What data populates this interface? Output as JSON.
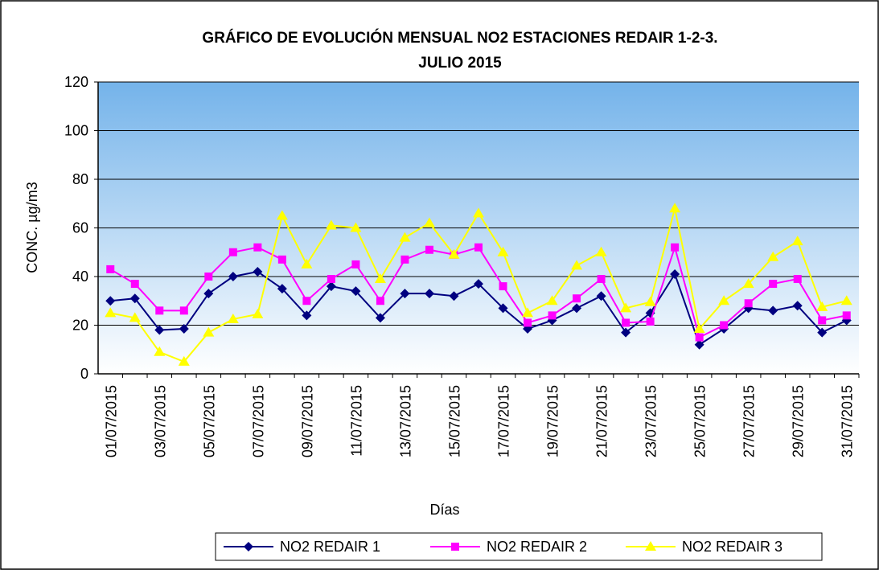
{
  "chart_data": {
    "type": "line",
    "title": [
      "GRÁFICO DE EVOLUCIÓN MENSUAL NO2 ESTACIONES REDAIR 1-2-3.",
      "JULIO 2015"
    ],
    "x_label": "Días",
    "y_label": "CONC.  µg/m3",
    "categories": [
      "01/07/2015",
      null,
      "03/07/2015",
      null,
      "05/07/2015",
      null,
      "07/07/2015",
      null,
      "09/07/2015",
      null,
      "11/07/2015",
      null,
      "13/07/2015",
      null,
      "15/07/2015",
      null,
      "17/07/2015",
      null,
      "19/07/2015",
      null,
      "21/07/2015",
      null,
      "23/07/2015",
      null,
      "25/07/2015",
      null,
      "27/07/2015",
      null,
      "29/07/2015",
      null,
      "31/07/2015"
    ],
    "series": [
      {
        "name": "NO2 REDAIR 1",
        "color": "#000080",
        "marker": "diamond",
        "values": [
          30,
          31,
          18,
          18.5,
          33,
          40,
          42,
          35,
          24,
          36,
          34,
          23,
          33,
          33,
          32,
          37,
          27,
          18.5,
          22,
          27,
          32,
          17,
          25,
          41,
          12,
          18.5,
          27,
          26,
          28,
          17,
          22
        ]
      },
      {
        "name": "NO2 REDAIR 2",
        "color": "#ff00ff",
        "marker": "square",
        "values": [
          43,
          37,
          26,
          26,
          40,
          50,
          52,
          47,
          30,
          39,
          45,
          30,
          47,
          51,
          49,
          52,
          36,
          21,
          24,
          31,
          39,
          21,
          21.5,
          52,
          15,
          20,
          29,
          37,
          39,
          22,
          24
        ]
      },
      {
        "name": "NO2 REDAIR 3",
        "color": "#ffff00",
        "marker": "triangle",
        "values": [
          25,
          23,
          9,
          5,
          17,
          22.5,
          24.5,
          65,
          45,
          61,
          60,
          39,
          56,
          62,
          49,
          66,
          50,
          25,
          30,
          44.5,
          50,
          27,
          29.5,
          68,
          18.5,
          30,
          37,
          48,
          54.5,
          27.5,
          30
        ]
      }
    ],
    "ylim": [
      0,
      120
    ],
    "yticks": [
      0,
      20,
      40,
      60,
      80,
      100,
      120
    ],
    "grid": true
  }
}
